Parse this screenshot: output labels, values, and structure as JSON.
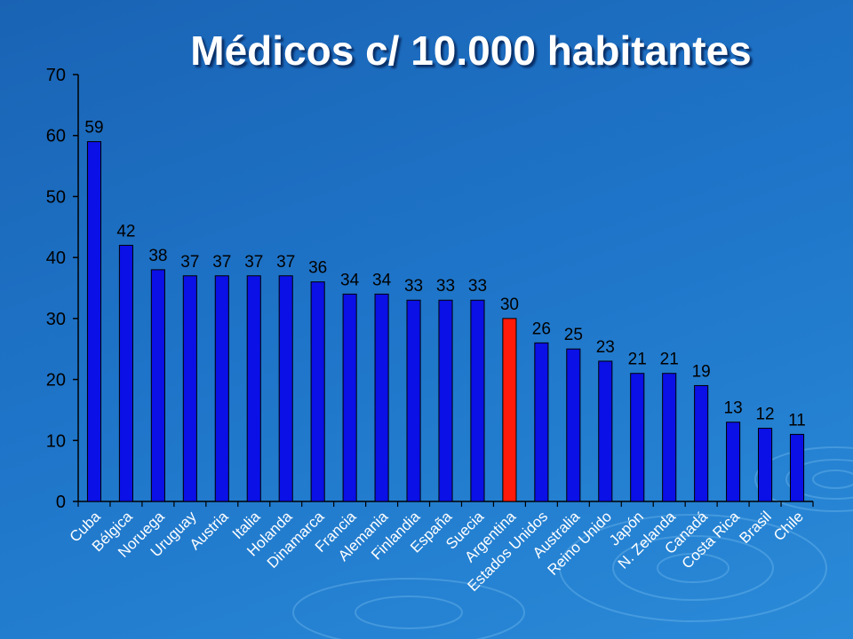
{
  "slide": {
    "title": "Médicos c/ 10.000 habitantes"
  },
  "colors": {
    "bar": "#0a10e6",
    "highlight": "#ff1a0a",
    "background": "#1e74c8"
  },
  "chart_data": {
    "type": "bar",
    "title": "Médicos c/ 10.000 habitantes",
    "xlabel": "",
    "ylabel": "",
    "ylim": [
      0,
      70
    ],
    "yticks": [
      0,
      10,
      20,
      30,
      40,
      50,
      60,
      70
    ],
    "grid": false,
    "legend": "none",
    "highlight_category": "Argentina",
    "categories": [
      "Cuba",
      "Bélgica",
      "Noruega",
      "Uruguay",
      "Austria",
      "Italia",
      "Holanda",
      "Dinamarca",
      "Francia",
      "Alemania",
      "Finlandia",
      "España",
      "Suecia",
      "Argentina",
      "Estados Unidos",
      "Australia",
      "Reino Unido",
      "Japón",
      "N. Zelanda",
      "Canadá",
      "Costa Rica",
      "Brasil",
      "Chile"
    ],
    "values": [
      59,
      42,
      38,
      37,
      37,
      37,
      37,
      36,
      34,
      34,
      33,
      33,
      33,
      30,
      26,
      25,
      23,
      21,
      21,
      19,
      13,
      12,
      11
    ]
  }
}
